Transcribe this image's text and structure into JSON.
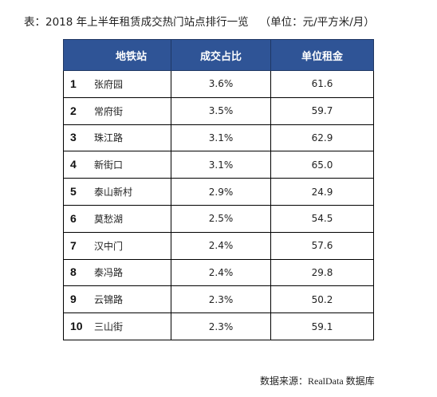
{
  "title": "表：2018 年上半年租赁成交热门站点排行一览",
  "unit": "（单位：元/平方米/月）",
  "table": {
    "headers": [
      "地铁站",
      "成交占比",
      "单位租金"
    ],
    "rows": [
      {
        "rank": "1",
        "station": "张府园",
        "share": "3.6%",
        "rent": "61.6"
      },
      {
        "rank": "2",
        "station": "常府街",
        "share": "3.5%",
        "rent": "59.7"
      },
      {
        "rank": "3",
        "station": "珠江路",
        "share": "3.1%",
        "rent": "62.9"
      },
      {
        "rank": "4",
        "station": "新街口",
        "share": "3.1%",
        "rent": "65.0"
      },
      {
        "rank": "5",
        "station": "泰山新村",
        "share": "2.9%",
        "rent": "24.9"
      },
      {
        "rank": "6",
        "station": "莫愁湖",
        "share": "2.5%",
        "rent": "54.5"
      },
      {
        "rank": "7",
        "station": "汉中门",
        "share": "2.4%",
        "rent": "57.6"
      },
      {
        "rank": "8",
        "station": "泰冯路",
        "share": "2.4%",
        "rent": "29.8"
      },
      {
        "rank": "9",
        "station": "云锦路",
        "share": "2.3%",
        "rent": "50.2"
      },
      {
        "rank": "10",
        "station": "三山街",
        "share": "2.3%",
        "rent": "59.1"
      }
    ]
  },
  "source": "数据来源：RealData 数据库",
  "colors": {
    "header_bg": "#2f5496",
    "header_text": "#ffffff"
  }
}
